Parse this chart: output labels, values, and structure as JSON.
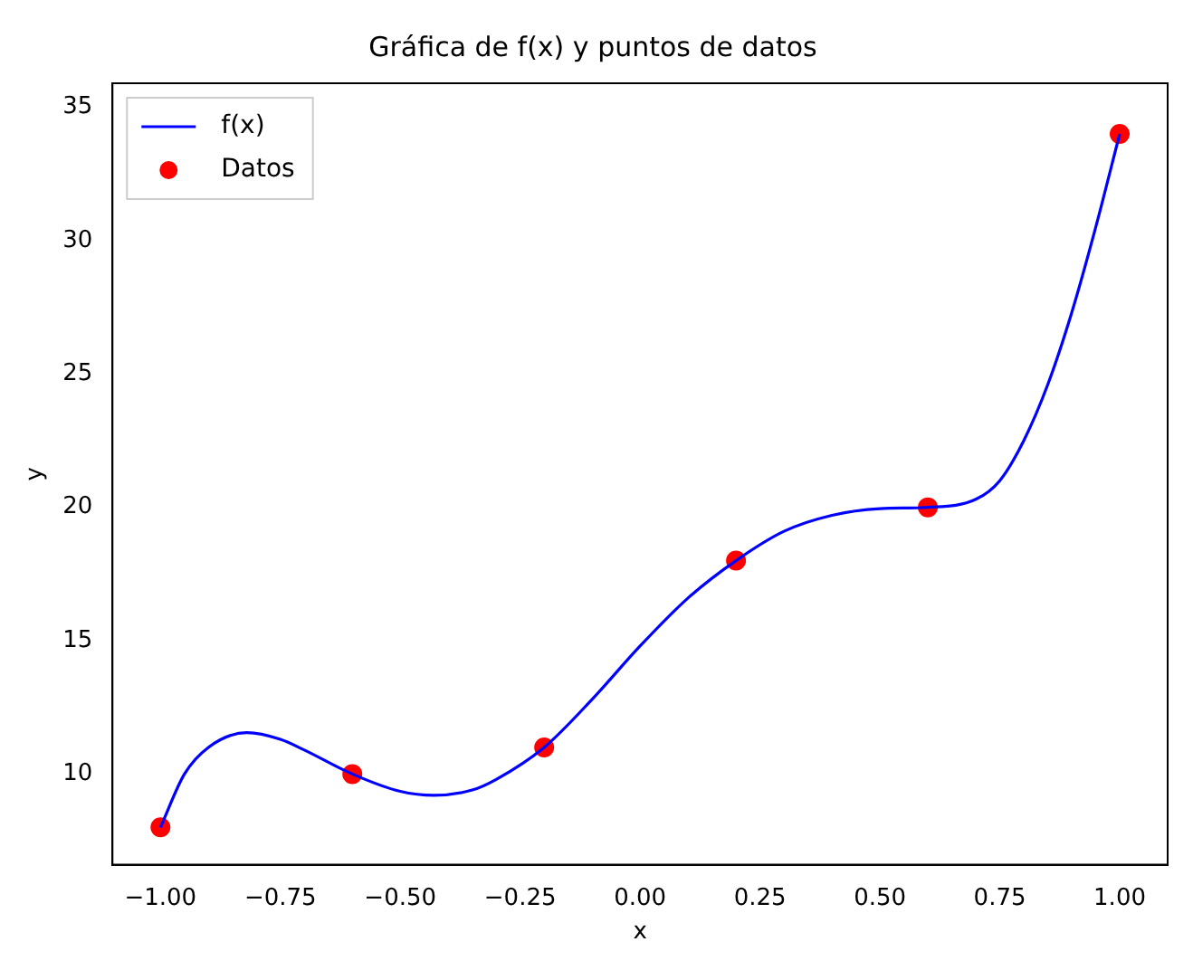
{
  "chart_data": {
    "type": "line",
    "title": "Gráfica de f(x) y puntos de datos",
    "xlabel": "x",
    "ylabel": "y",
    "xlim": [
      -1.1,
      1.1
    ],
    "ylim": [
      6.6,
      35.9
    ],
    "xticks": [
      {
        "value": -1,
        "label": "−1.00"
      },
      {
        "value": -0.75,
        "label": "−0.75"
      },
      {
        "value": -0.5,
        "label": "−0.50"
      },
      {
        "value": -0.25,
        "label": "−0.25"
      },
      {
        "value": 0,
        "label": "0.00"
      },
      {
        "value": 0.25,
        "label": "0.25"
      },
      {
        "value": 0.5,
        "label": "0.50"
      },
      {
        "value": 0.75,
        "label": "0.75"
      },
      {
        "value": 1,
        "label": "1.00"
      }
    ],
    "yticks": [
      10,
      15,
      20,
      25,
      30,
      35
    ],
    "grid": false,
    "legend": "top left",
    "series": [
      {
        "name": "f(x)",
        "type": "line",
        "color": "#0000ff",
        "line_style": "solid",
        "marker": "none",
        "x": [
          -1,
          -0.95,
          -0.9,
          -0.82,
          -0.75,
          -0.7,
          -0.6,
          -0.5,
          -0.43,
          -0.35,
          -0.3,
          -0.2,
          -0.1,
          0,
          0.1,
          0.2,
          0.3,
          0.4,
          0.5,
          0.6,
          0.7,
          0.75,
          0.8,
          0.85,
          0.9,
          0.95,
          1
        ],
        "values": [
          8,
          10,
          11,
          11.55,
          11.3,
          10.9,
          10,
          9.35,
          9.2,
          9.4,
          9.8,
          11,
          12.8,
          14.8,
          16.6,
          18,
          19.1,
          19.7,
          19.95,
          20,
          20.3,
          21,
          22.5,
          24.6,
          27.3,
          30.5,
          34
        ]
      },
      {
        "name": "Datos",
        "type": "scatter",
        "color": "#ff0000",
        "marker": "circle",
        "x": [
          -1,
          -0.6,
          -0.2,
          0.2,
          0.6,
          1
        ],
        "values": [
          8,
          10,
          11,
          18,
          20,
          34
        ]
      }
    ]
  }
}
